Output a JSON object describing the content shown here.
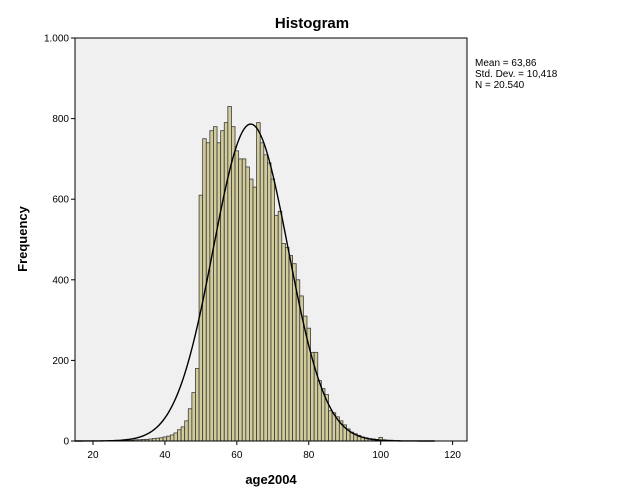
{
  "chart_data": {
    "type": "bar",
    "title": "Histogram",
    "xlabel": "age2004",
    "ylabel": "Frequency",
    "xlim": [
      15,
      124
    ],
    "ylim": [
      0,
      1000
    ],
    "x_ticks": [
      20,
      40,
      60,
      80,
      100,
      120
    ],
    "x_tick_labels": [
      "20",
      "40",
      "60",
      "80",
      "100",
      "120"
    ],
    "y_ticks": [
      0,
      200,
      400,
      600,
      800,
      1000
    ],
    "y_tick_labels": [
      "0",
      "200",
      "400",
      "600",
      "800",
      "1.000"
    ],
    "bin_width": 1,
    "bins": [
      {
        "x": 27,
        "value": 1
      },
      {
        "x": 28,
        "value": 1
      },
      {
        "x": 29,
        "value": 1
      },
      {
        "x": 30,
        "value": 2
      },
      {
        "x": 31,
        "value": 2
      },
      {
        "x": 32,
        "value": 3
      },
      {
        "x": 33,
        "value": 3
      },
      {
        "x": 34,
        "value": 4
      },
      {
        "x": 35,
        "value": 4
      },
      {
        "x": 36,
        "value": 5
      },
      {
        "x": 37,
        "value": 6
      },
      {
        "x": 38,
        "value": 7
      },
      {
        "x": 39,
        "value": 8
      },
      {
        "x": 40,
        "value": 10
      },
      {
        "x": 41,
        "value": 12
      },
      {
        "x": 42,
        "value": 15
      },
      {
        "x": 43,
        "value": 20
      },
      {
        "x": 44,
        "value": 28
      },
      {
        "x": 45,
        "value": 35
      },
      {
        "x": 46,
        "value": 50
      },
      {
        "x": 47,
        "value": 80
      },
      {
        "x": 48,
        "value": 120
      },
      {
        "x": 49,
        "value": 180
      },
      {
        "x": 50,
        "value": 610
      },
      {
        "x": 51,
        "value": 750
      },
      {
        "x": 52,
        "value": 740
      },
      {
        "x": 53,
        "value": 770
      },
      {
        "x": 54,
        "value": 780
      },
      {
        "x": 55,
        "value": 740
      },
      {
        "x": 56,
        "value": 770
      },
      {
        "x": 57,
        "value": 790
      },
      {
        "x": 58,
        "value": 830
      },
      {
        "x": 59,
        "value": 780
      },
      {
        "x": 60,
        "value": 720
      },
      {
        "x": 61,
        "value": 700
      },
      {
        "x": 62,
        "value": 700
      },
      {
        "x": 63,
        "value": 680
      },
      {
        "x": 64,
        "value": 650
      },
      {
        "x": 65,
        "value": 630
      },
      {
        "x": 66,
        "value": 790
      },
      {
        "x": 67,
        "value": 740
      },
      {
        "x": 68,
        "value": 710
      },
      {
        "x": 69,
        "value": 690
      },
      {
        "x": 70,
        "value": 650
      },
      {
        "x": 71,
        "value": 560
      },
      {
        "x": 72,
        "value": 570
      },
      {
        "x": 73,
        "value": 490
      },
      {
        "x": 74,
        "value": 480
      },
      {
        "x": 75,
        "value": 460
      },
      {
        "x": 76,
        "value": 440
      },
      {
        "x": 77,
        "value": 400
      },
      {
        "x": 78,
        "value": 360
      },
      {
        "x": 79,
        "value": 310
      },
      {
        "x": 80,
        "value": 280
      },
      {
        "x": 81,
        "value": 220
      },
      {
        "x": 82,
        "value": 220
      },
      {
        "x": 83,
        "value": 150
      },
      {
        "x": 84,
        "value": 130
      },
      {
        "x": 85,
        "value": 115
      },
      {
        "x": 86,
        "value": 75
      },
      {
        "x": 87,
        "value": 70
      },
      {
        "x": 88,
        "value": 60
      },
      {
        "x": 89,
        "value": 50
      },
      {
        "x": 90,
        "value": 40
      },
      {
        "x": 91,
        "value": 30
      },
      {
        "x": 92,
        "value": 22
      },
      {
        "x": 93,
        "value": 18
      },
      {
        "x": 94,
        "value": 14
      },
      {
        "x": 95,
        "value": 10
      },
      {
        "x": 96,
        "value": 8
      },
      {
        "x": 97,
        "value": 6
      },
      {
        "x": 98,
        "value": 5
      },
      {
        "x": 99,
        "value": 4
      },
      {
        "x": 100,
        "value": 9
      },
      {
        "x": 101,
        "value": 3
      },
      {
        "x": 102,
        "value": 2
      },
      {
        "x": 103,
        "value": 2
      },
      {
        "x": 104,
        "value": 1
      },
      {
        "x": 105,
        "value": 1
      }
    ],
    "normal_curve": {
      "mean": 63.86,
      "std_dev": 10.418,
      "n": 20540
    },
    "stats_box": [
      "Mean = 63,86",
      "Std. Dev. = 10,418",
      "N = 20.540"
    ],
    "colors": {
      "plot_background": "#f0f0f0",
      "bar_fill": "#d2cc9b",
      "bar_stroke": "#3a3a3a",
      "curve": "#000000"
    },
    "grid": false
  }
}
